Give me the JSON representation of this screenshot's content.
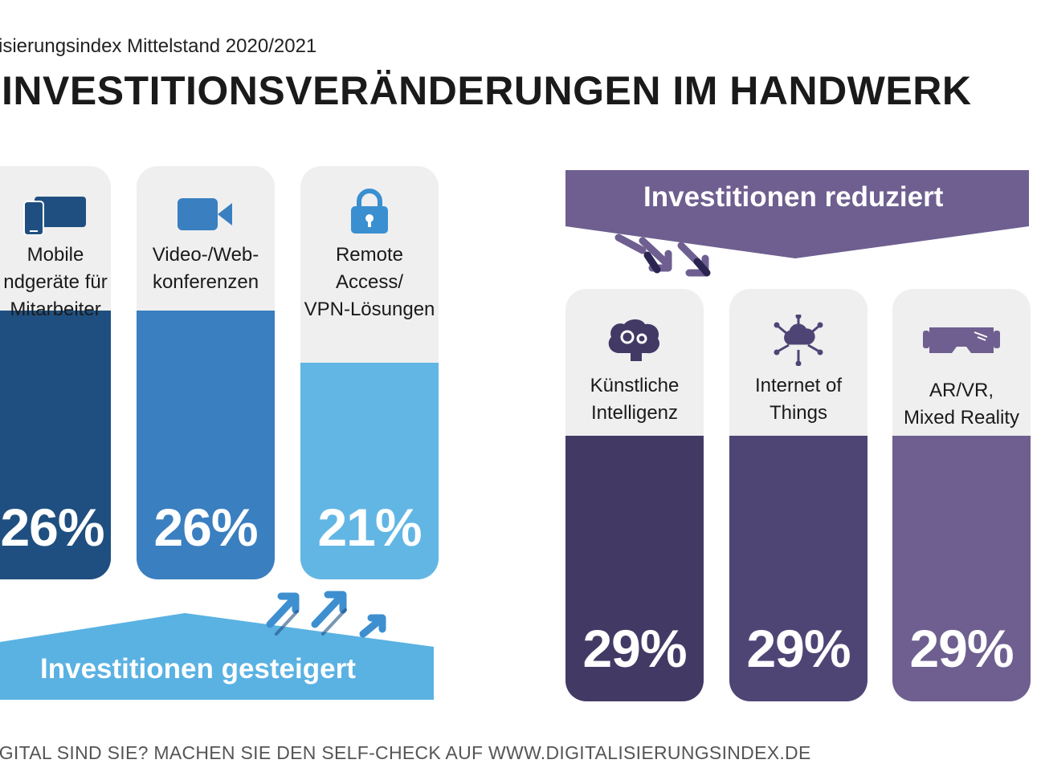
{
  "header": {
    "subtitle": "isierungsindex Mittelstand 2020/2021",
    "title": "INVESTITIONSVERÄNDERUNGEN IM HANDWERK"
  },
  "banners": {
    "increased": "Investitionen gesteigert",
    "reduced": "Investitionen reduziert"
  },
  "footer": "IGITAL SIND SIE? MACHEN SIE DEN SELF-CHECK AUF WWW.DIGITALISIERUNGSINDEX.DE",
  "chart_data": [
    {
      "type": "bar",
      "group": "Investitionen gesteigert",
      "categories": [
        "Mobile\nndgeräte für\nMitarbeiter",
        "Video-/Web-\nkonferenzen",
        "Remote\nAccess/\nVPN-Lösungen"
      ],
      "values": [
        26,
        26,
        21
      ],
      "value_labels": [
        "26%",
        "26%",
        "21%"
      ],
      "icons": [
        "mobile-devices-icon",
        "video-camera-icon",
        "padlock-icon"
      ],
      "colors": [
        "#1f4f80",
        "#3a7fc0",
        "#62b6e4"
      ],
      "ylim": [
        0,
        40
      ]
    },
    {
      "type": "bar",
      "group": "Investitionen reduziert",
      "categories": [
        "Künstliche\nIntelligenz",
        "Internet of\nThings",
        "AR/VR,\nMixed Reality"
      ],
      "values": [
        29,
        29,
        29
      ],
      "value_labels": [
        "29%",
        "29%",
        "29%"
      ],
      "icons": [
        "brain-gears-icon",
        "cloud-network-icon",
        "vr-headset-icon"
      ],
      "colors": [
        "#423a65",
        "#4f4575",
        "#6e5f90"
      ],
      "ylim": [
        0,
        45
      ]
    }
  ]
}
